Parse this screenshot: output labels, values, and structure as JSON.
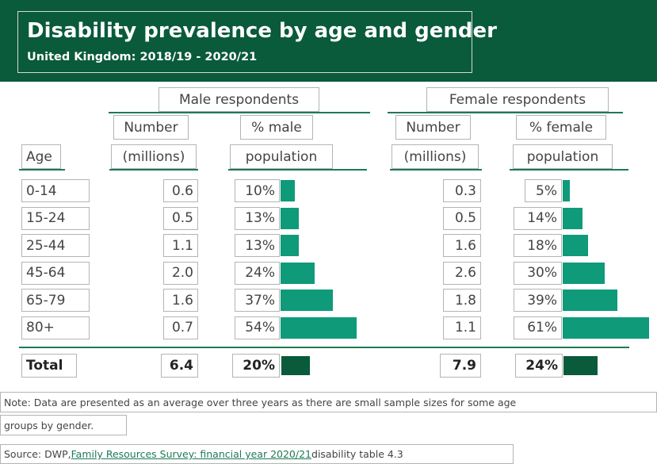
{
  "header": {
    "title": "Disability prevalence by age and gender",
    "subtitle": "United Kingdom: 2018/19 - 2020/21"
  },
  "columns": {
    "male_group": "Male respondents",
    "female_group": "Female respondents",
    "number_line1": "Number",
    "number_line2": "(millions)",
    "pct_male_line1": "% male",
    "pct_female_line1": "% female",
    "pct_line2": "population",
    "age": "Age"
  },
  "colors": {
    "bar": "#0f9a7a",
    "total_bar": "#0a5a3c",
    "banner": "#0a5a3c"
  },
  "chart_data": {
    "type": "table",
    "title": "Disability prevalence by age and gender",
    "subtitle": "United Kingdom: 2018/19 - 2020/21",
    "columns": [
      "Age",
      "Male Number (millions)",
      "% male population",
      "Female Number (millions)",
      "% female population"
    ],
    "rows": [
      {
        "age": "0-14",
        "male_number": "0.6",
        "male_pct": 10,
        "female_number": "0.3",
        "female_pct": 5
      },
      {
        "age": "15-24",
        "male_number": "0.5",
        "male_pct": 13,
        "female_number": "0.5",
        "female_pct": 14
      },
      {
        "age": "25-44",
        "male_number": "1.1",
        "male_pct": 13,
        "female_number": "1.6",
        "female_pct": 18
      },
      {
        "age": "45-64",
        "male_number": "2.0",
        "male_pct": 24,
        "female_number": "2.6",
        "female_pct": 30
      },
      {
        "age": "65-79",
        "male_number": "1.6",
        "male_pct": 37,
        "female_number": "1.8",
        "female_pct": 39
      },
      {
        "age": "80+",
        "male_number": "0.7",
        "male_pct": 54,
        "female_number": "1.1",
        "female_pct": 61
      }
    ],
    "total": {
      "age": "Total",
      "male_number": "6.4",
      "male_pct": 20,
      "female_number": "7.9",
      "female_pct": 24
    }
  },
  "footer": {
    "note_line1": "Note: Data are presented as an average over three years as there are small sample sizes for some age",
    "note_line2": "groups by gender.",
    "source_prefix": "Source: DWP, ",
    "source_link": "Family Resources Survey: financial year 2020/21",
    "source_suffix": " disability table 4.3"
  }
}
